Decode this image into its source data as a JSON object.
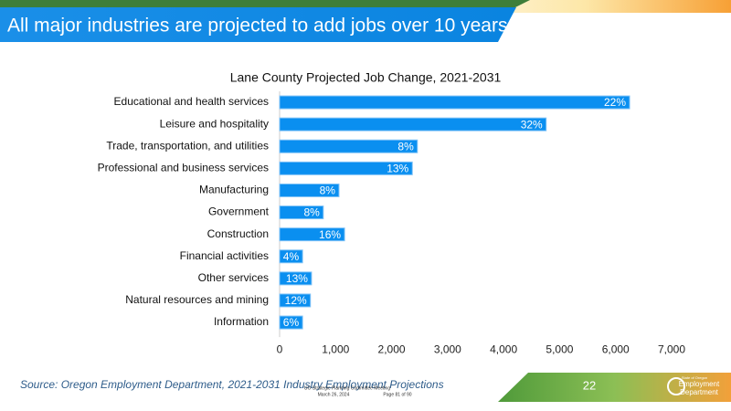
{
  "header": {
    "title": "All major industries are projected to add jobs over 10 years"
  },
  "chart_data": {
    "type": "barh",
    "title": "Lane County Projected Job Change, 2021-2031",
    "categories": [
      "Educational and health services",
      "Leisure and hospitality",
      "Trade, transportation, and utilities",
      "Professional and business services",
      "Manufacturing",
      "Government",
      "Construction",
      "Financial activities",
      "Other services",
      "Natural resources and mining",
      "Information"
    ],
    "values": [
      6250,
      4760,
      2460,
      2370,
      1060,
      780,
      1160,
      410,
      570,
      550,
      410
    ],
    "bar_labels": [
      "22%",
      "32%",
      "8%",
      "13%",
      "8%",
      "8%",
      "16%",
      "4%",
      "13%",
      "12%",
      "6%"
    ],
    "color": "#0a8ff0",
    "xlim": [
      0,
      7000
    ],
    "xticks": [
      0,
      {
        "value": 1000,
        "label": "1,000"
      },
      {
        "value": 2000,
        "label": "2,000"
      },
      {
        "value": 3000,
        "label": "3,000"
      },
      {
        "value": 4000,
        "label": "4,000"
      },
      {
        "value": 5000,
        "label": "5,000"
      },
      {
        "value": 6000,
        "label": "6,000"
      },
      {
        "value": 7000,
        "label": "7,000"
      }
    ],
    "grid": false
  },
  "footer": {
    "source": "Source: Oregon Employment Department, 2021-2031 Industry Employment Projections",
    "meeting": "UO Strategic Planning Committee Meeting",
    "date": "March 26, 2024",
    "page": "Page 81 of 90",
    "slide_number": "22",
    "logo_small": "State of Oregon",
    "logo_line1": "Employment",
    "logo_line2": "Department"
  }
}
